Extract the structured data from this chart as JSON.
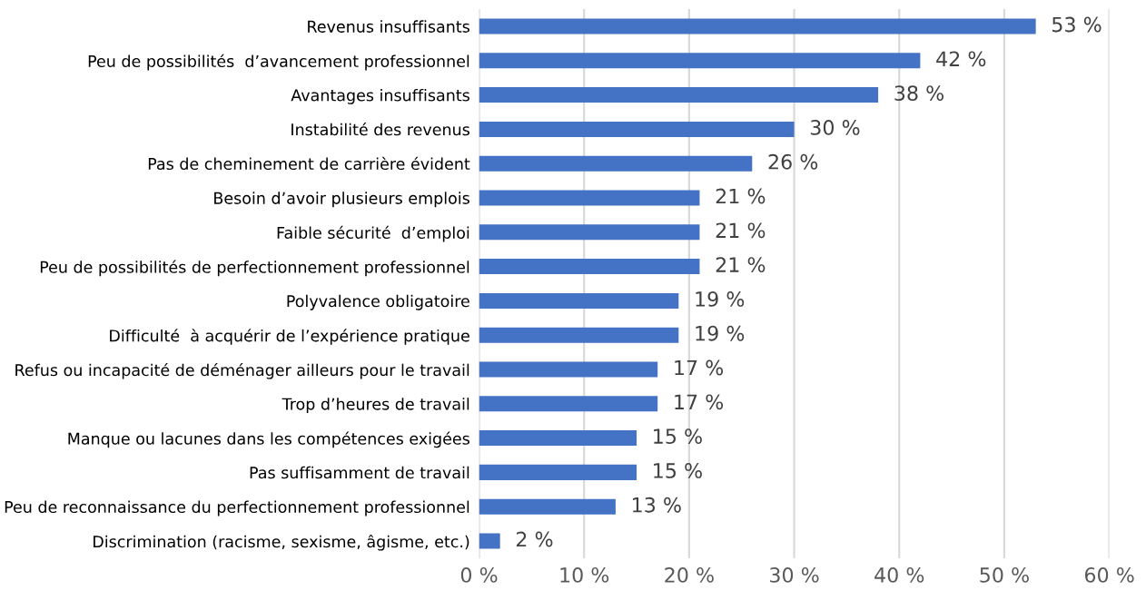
{
  "chart_data": {
    "type": "bar",
    "orientation": "horizontal",
    "categories": [
      "Revenus insuffisants",
      "Peu de possibilités  d’avancement professionnel",
      "Avantages insuffisants",
      "Instabilité des revenus",
      "Pas de cheminement de carrière évident",
      "Besoin d’avoir plusieurs emplois",
      "Faible sécurité  d’emploi",
      "Peu de possibilités de perfectionnement professionnel",
      "Polyvalence obligatoire",
      "Difficulté  à acquérir de l’expérience pratique",
      "Refus ou incapacité de déménager ailleurs pour le travail",
      "Trop d’heures de travail",
      "Manque ou lacunes dans les compétences exigées",
      "Pas suffisamment de travail",
      "Peu de reconnaissance du perfectionnement professionnel",
      "Discrimination (racisme, sexisme, âgisme, etc.)"
    ],
    "values": [
      53,
      42,
      38,
      30,
      26,
      21,
      21,
      21,
      19,
      19,
      17,
      17,
      15,
      15,
      13,
      2
    ],
    "value_labels": [
      "53 %",
      "42 %",
      "38 %",
      "30 %",
      "26 %",
      "21 %",
      "21 %",
      "21 %",
      "19 %",
      "19 %",
      "17 %",
      "17 %",
      "15 %",
      "15 %",
      "13 %",
      "2 %"
    ],
    "color": "#4472c4",
    "xlim": [
      0,
      60
    ],
    "xticks": [
      {
        "value": 0,
        "label": "0 %"
      },
      {
        "value": 10,
        "label": "10 %"
      },
      {
        "value": 20,
        "label": "20 %"
      },
      {
        "value": 30,
        "label": "30 %"
      },
      {
        "value": 40,
        "label": "40 %"
      },
      {
        "value": 50,
        "label": "50 %"
      },
      {
        "value": 60,
        "label": "60 %"
      }
    ],
    "grid": "x"
  }
}
